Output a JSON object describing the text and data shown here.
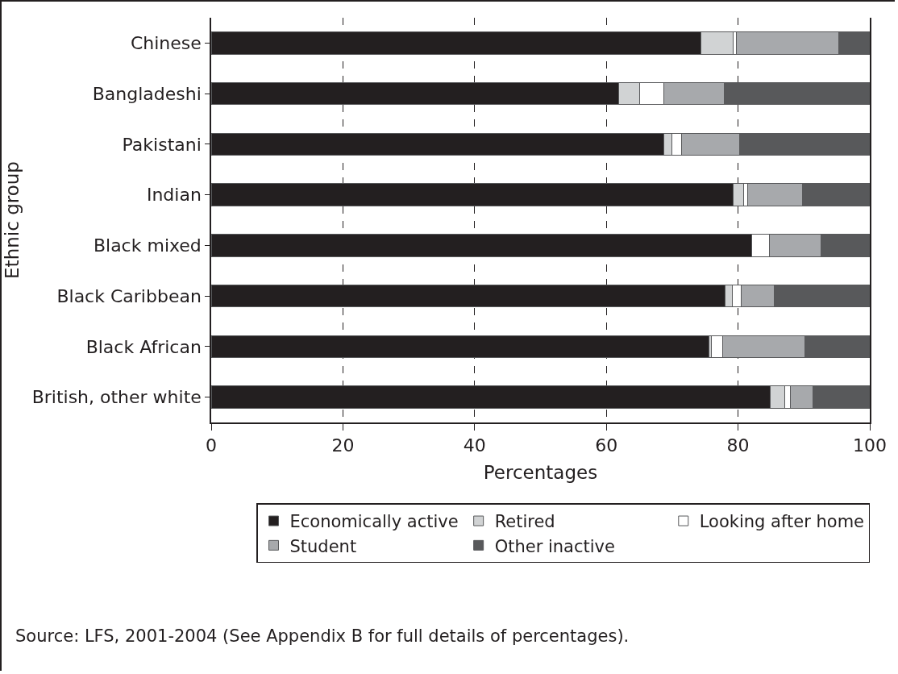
{
  "chart_data": {
    "type": "bar",
    "orientation": "horizontal",
    "stacked": true,
    "categories": [
      "Chinese",
      "Bangladeshi",
      "Pakistani",
      "Indian",
      "Black mixed",
      "Black Caribbean",
      "Black African",
      "British, other white"
    ],
    "series": [
      {
        "name": "Economically active",
        "color": "#231f20",
        "values": [
          74.4,
          61.9,
          68.7,
          79.2,
          82.1,
          78.0,
          75.6,
          84.9
        ]
      },
      {
        "name": "Retired",
        "color": "#d1d3d4",
        "values": [
          4.9,
          3.1,
          1.3,
          1.7,
          0,
          1.1,
          0.3,
          2.2
        ]
      },
      {
        "name": "Looking after home",
        "color": "#ffffff",
        "values": [
          0.4,
          3.7,
          1.4,
          0.5,
          2.7,
          1.4,
          1.8,
          0.9
        ]
      },
      {
        "name": "Student",
        "color": "#a7a9ac",
        "values": [
          15.6,
          9.2,
          8.8,
          8.4,
          7.8,
          5.0,
          12.4,
          3.4
        ]
      },
      {
        "name": "Other inactive",
        "color": "#58595b",
        "values": [
          4.7,
          22.1,
          19.8,
          10.2,
          7.4,
          14.5,
          9.9,
          8.6
        ]
      }
    ],
    "xlim": [
      0,
      100
    ],
    "xticks": [
      0,
      20,
      40,
      60,
      80,
      100
    ],
    "xlabel": "Percentages",
    "ylabel": "Ethnic group",
    "grid": "x",
    "legend": "bottom",
    "annotations": [
      "Source: LFS, 2001-2004 (See Appendix B for full details of percentages)."
    ]
  }
}
